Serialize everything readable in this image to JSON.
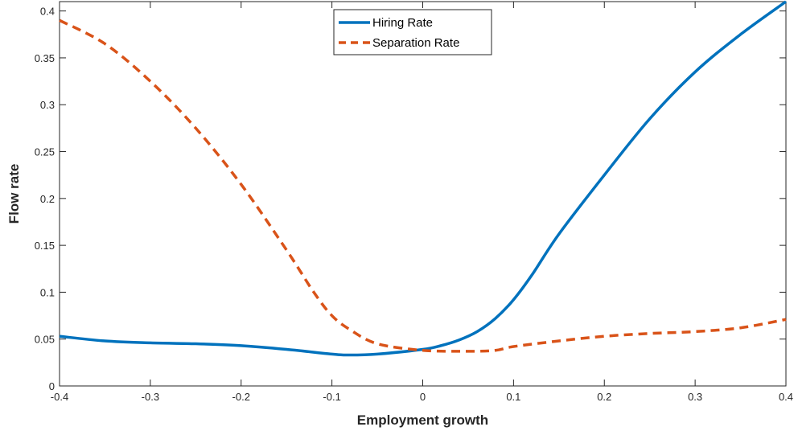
{
  "chart_data": {
    "type": "line",
    "xlabel": "Employment growth",
    "ylabel": "Flow rate",
    "xlim": [
      -0.4,
      0.4
    ],
    "ylim": [
      0,
      0.41
    ],
    "xticks": [
      -0.4,
      -0.3,
      -0.2,
      -0.1,
      0,
      0.1,
      0.2,
      0.3,
      0.4
    ],
    "xtick_labels": [
      "-0.4",
      "-0.3",
      "-0.2",
      "-0.1",
      "0",
      "0.1",
      "0.2",
      "0.3",
      "0.4"
    ],
    "yticks": [
      0,
      0.05,
      0.1,
      0.15,
      0.2,
      0.25,
      0.3,
      0.35,
      0.4
    ],
    "ytick_labels": [
      "0",
      "0.05",
      "0.1",
      "0.15",
      "0.2",
      "0.25",
      "0.3",
      "0.35",
      "0.4"
    ],
    "grid": false,
    "legend_position": "top-center",
    "series": [
      {
        "name": "Hiring Rate",
        "color": "#0072BD",
        "style": "solid",
        "x": [
          -0.4,
          -0.35,
          -0.3,
          -0.25,
          -0.2,
          -0.15,
          -0.1,
          -0.08,
          -0.05,
          0,
          0.02,
          0.04,
          0.06,
          0.08,
          0.1,
          0.12,
          0.15,
          0.2,
          0.25,
          0.3,
          0.35,
          0.4
        ],
        "y": [
          0.053,
          0.048,
          0.046,
          0.045,
          0.043,
          0.039,
          0.034,
          0.033,
          0.034,
          0.039,
          0.043,
          0.049,
          0.058,
          0.072,
          0.092,
          0.118,
          0.162,
          0.225,
          0.285,
          0.335,
          0.375,
          0.41
        ]
      },
      {
        "name": "Separation Rate",
        "color": "#D95319",
        "style": "dashed",
        "x": [
          -0.4,
          -0.35,
          -0.3,
          -0.25,
          -0.2,
          -0.15,
          -0.12,
          -0.1,
          -0.08,
          -0.05,
          0,
          0.05,
          0.08,
          0.1,
          0.15,
          0.2,
          0.25,
          0.3,
          0.35,
          0.4
        ],
        "y": [
          0.39,
          0.365,
          0.325,
          0.275,
          0.215,
          0.145,
          0.1,
          0.075,
          0.06,
          0.045,
          0.038,
          0.037,
          0.038,
          0.042,
          0.048,
          0.053,
          0.056,
          0.058,
          0.062,
          0.071
        ]
      }
    ]
  }
}
